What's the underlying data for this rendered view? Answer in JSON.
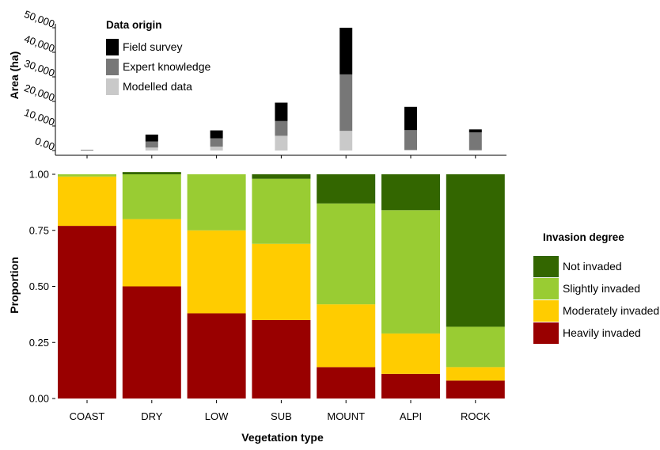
{
  "chart_data": [
    {
      "type": "bar",
      "stacked": true,
      "panel": "top",
      "ylabel": "Area (ha)",
      "ylim": [
        0,
        50000
      ],
      "yticks": [
        "0.00",
        "10,000",
        "20,000",
        "30,000",
        "40,000",
        "50,000"
      ],
      "ytick_values": [
        0,
        10000,
        20000,
        30000,
        40000,
        50000
      ],
      "categories": [
        "COAST",
        "DRY",
        "LOW",
        "SUB",
        "MOUNT",
        "ALPI",
        "ROCK"
      ],
      "legend_title": "Data origin",
      "legend_position": "top-left",
      "grid": false,
      "series": [
        {
          "name": "Modelled data",
          "color": "#c9c9c9",
          "values": [
            0,
            1200,
            1600,
            6000,
            8000,
            300,
            200
          ]
        },
        {
          "name": "Expert knowledge",
          "color": "#777777",
          "values": [
            300,
            2500,
            3400,
            6000,
            23000,
            8000,
            7200
          ]
        },
        {
          "name": "Field survey",
          "color": "#000000",
          "values": [
            0,
            2800,
            3200,
            7500,
            19000,
            9500,
            1200
          ]
        }
      ],
      "legend_order": [
        "Field survey",
        "Expert knowledge",
        "Modelled data"
      ]
    },
    {
      "type": "bar",
      "stacked": true,
      "panel": "bottom",
      "xlabel": "Vegetation type",
      "ylabel": "Proportion",
      "ylim": [
        0,
        1
      ],
      "yticks": [
        "0.00",
        "0.25",
        "0.50",
        "0.75",
        "1.00"
      ],
      "ytick_values": [
        0,
        0.25,
        0.5,
        0.75,
        1
      ],
      "categories": [
        "COAST",
        "DRY",
        "LOW",
        "SUB",
        "MOUNT",
        "ALPI",
        "ROCK"
      ],
      "legend_title": "Invasion degree",
      "legend_position": "right",
      "grid": false,
      "series": [
        {
          "name": "Heavily invaded",
          "color": "#990000",
          "values": [
            0.77,
            0.5,
            0.38,
            0.35,
            0.14,
            0.11,
            0.08
          ]
        },
        {
          "name": "Moderately invaded",
          "color": "#ffcc00",
          "values": [
            0.22,
            0.3,
            0.37,
            0.34,
            0.28,
            0.18,
            0.06
          ]
        },
        {
          "name": "Slightly invaded",
          "color": "#99cc33",
          "values": [
            0.01,
            0.2,
            0.25,
            0.29,
            0.45,
            0.55,
            0.18
          ]
        },
        {
          "name": "Not invaded",
          "color": "#336600",
          "values": [
            0.0,
            0.01,
            0.0,
            0.02,
            0.13,
            0.16,
            0.68
          ]
        }
      ],
      "legend_order": [
        "Not invaded",
        "Slightly invaded",
        "Moderately invaded",
        "Heavily invaded"
      ]
    }
  ]
}
